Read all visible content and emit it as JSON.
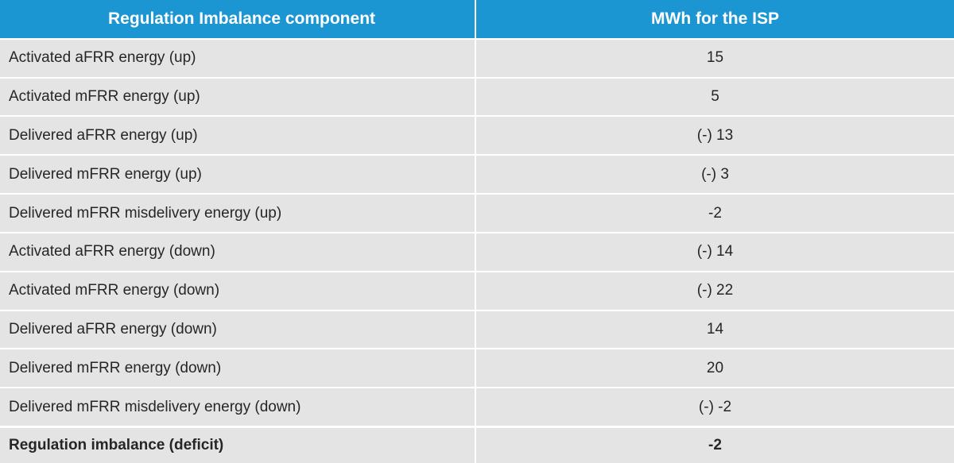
{
  "header": {
    "col1": "Regulation Imbalance component",
    "col2": "MWh for the ISP"
  },
  "rows": [
    {
      "component": "Activated aFRR energy (up)",
      "mwh": "15"
    },
    {
      "component": "Activated mFRR energy (up)",
      "mwh": "5"
    },
    {
      "component": "Delivered aFRR energy (up)",
      "mwh": "(-) 13"
    },
    {
      "component": "Delivered mFRR energy (up)",
      "mwh": "(-) 3"
    },
    {
      "component": "Delivered mFRR misdelivery energy (up)",
      "mwh": "-2"
    },
    {
      "component": "Activated aFRR energy (down)",
      "mwh": "(-) 14"
    },
    {
      "component": "Activated mFRR energy (down)",
      "mwh": "(-) 22"
    },
    {
      "component": "Delivered aFRR energy (down)",
      "mwh": "14"
    },
    {
      "component": "Delivered mFRR energy (down)",
      "mwh": "20"
    },
    {
      "component": "Delivered mFRR misdelivery energy (down)",
      "mwh": "(-) -2"
    }
  ],
  "total": {
    "component": "Regulation imbalance (deficit)",
    "mwh": "-2"
  },
  "colors": {
    "header_bg": "#1b96d3",
    "header_text": "#ffffff",
    "row_bg": "#e5e4e4",
    "text": "#262626"
  }
}
